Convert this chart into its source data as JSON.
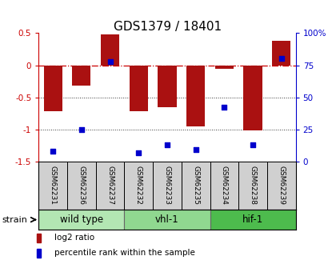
{
  "title": "GDS1379 / 18401",
  "samples": [
    "GSM62231",
    "GSM62236",
    "GSM62237",
    "GSM62232",
    "GSM62233",
    "GSM62235",
    "GSM62234",
    "GSM62238",
    "GSM62239"
  ],
  "log2_ratio": [
    -0.72,
    -0.32,
    0.48,
    -0.72,
    -0.65,
    -0.95,
    -0.06,
    -1.01,
    0.38
  ],
  "percentile_rank": [
    8,
    25,
    78,
    7,
    13,
    9,
    42,
    13,
    80
  ],
  "groups": [
    {
      "label": "wild type",
      "indices": [
        0,
        1,
        2
      ],
      "color": "#b3e6b3"
    },
    {
      "label": "vhl-1",
      "indices": [
        3,
        4,
        5
      ],
      "color": "#90d890"
    },
    {
      "label": "hif-1",
      "indices": [
        6,
        7,
        8
      ],
      "color": "#4dbb4d"
    }
  ],
  "ylim": [
    -1.5,
    0.5
  ],
  "yticks_left": [
    -1.5,
    -1.0,
    -0.5,
    0.0,
    0.5
  ],
  "yticks_right": [
    0,
    25,
    50,
    75,
    100
  ],
  "bar_color": "#aa1111",
  "dot_color": "#0000cc",
  "zero_line_color": "#cc0000",
  "dotted_line_color": "#333333",
  "sample_box_color": "#d0d0d0",
  "legend_bar_label": "log2 ratio",
  "legend_dot_label": "percentile rank within the sample",
  "title_fontsize": 11,
  "tick_fontsize": 7.5,
  "label_fontsize": 6.5,
  "group_fontsize": 8.5,
  "legend_fontsize": 7.5
}
